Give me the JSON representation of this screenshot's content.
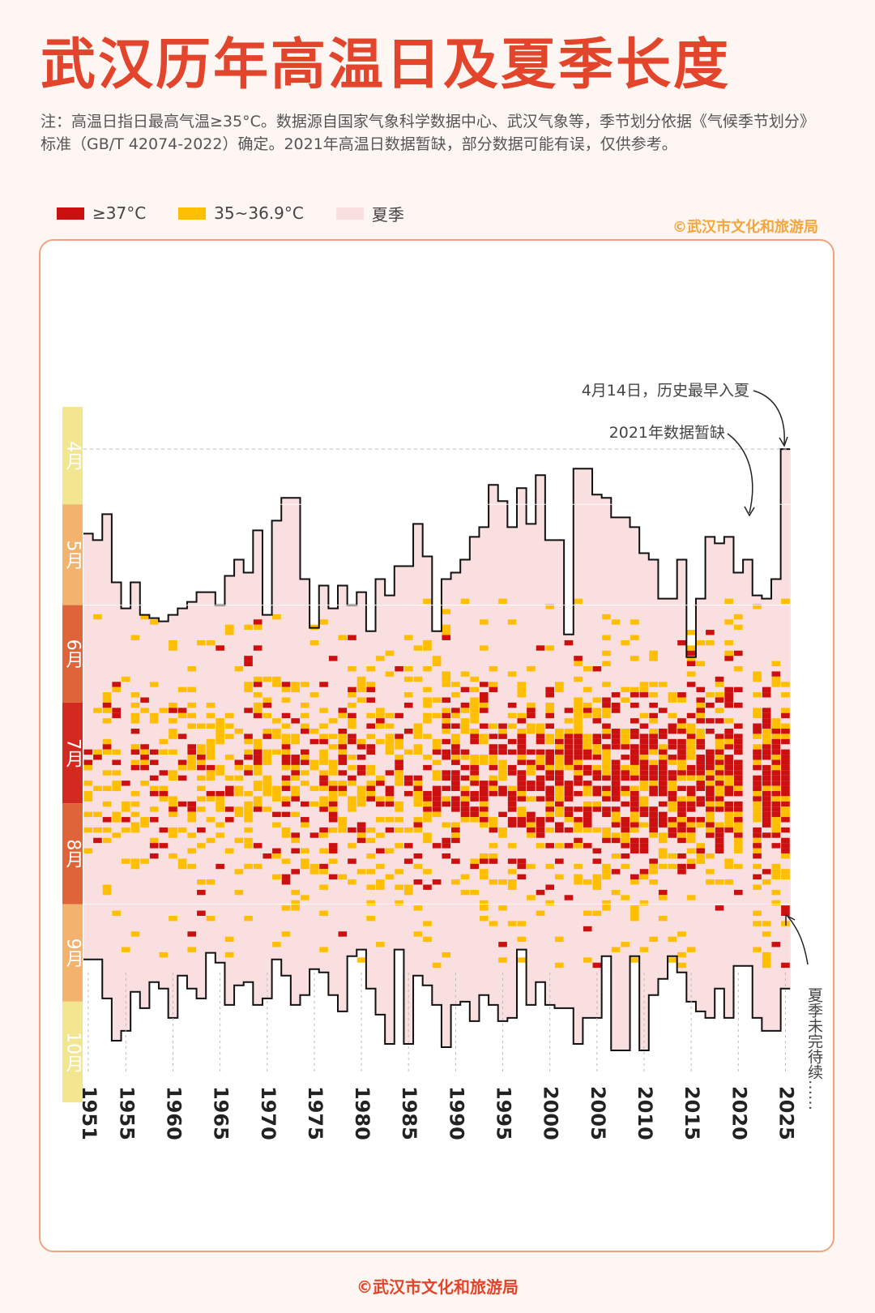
{
  "header": {
    "title": "武汉历年高温日及夏季长度",
    "note": "注：高温日指日最高气温≥35°C。数据源自国家气象科学数据中心、武汉气象等，季节划分依据《气候季节划分》标准（GB/T 42074-2022）确定。2021年高温日数据暂缺，部分数据可能有误，仅供参考。"
  },
  "legend": {
    "items": [
      {
        "label": "≥37°C",
        "color": "#cc1010"
      },
      {
        "label": "35~36.9°C",
        "color": "#ffbf00"
      },
      {
        "label": "夏季",
        "color": "#f9dfe0"
      }
    ]
  },
  "credits": {
    "top": "©武汉市文化和旅游局",
    "bottom": "©武汉市文化和旅游局"
  },
  "chart_data": {
    "type": "heatmap",
    "title": "武汉历年高温日及夏季长度",
    "x_axis": {
      "range": [
        1951,
        2025
      ],
      "tick_labels": [
        "1951",
        "1955",
        "1960",
        "1965",
        "1970",
        "1975",
        "1980",
        "1985",
        "1990",
        "1995",
        "2000",
        "2005",
        "2010",
        "2015",
        "2020",
        "2025"
      ]
    },
    "y_axis": {
      "months": [
        {
          "label": "4月",
          "color": "#f2e690"
        },
        {
          "label": "5月",
          "color": "#f3b36f"
        },
        {
          "label": "6月",
          "color": "#e0643a"
        },
        {
          "label": "7月",
          "color": "#d22a20"
        },
        {
          "label": "8月",
          "color": "#e0643a"
        },
        {
          "label": "9月",
          "color": "#f3b36f"
        },
        {
          "label": "10月",
          "color": "#f2e690"
        }
      ],
      "day_range": [
        91,
        304
      ]
    },
    "summer": {
      "years": [
        1951,
        1952,
        1953,
        1954,
        1955,
        1956,
        1957,
        1958,
        1959,
        1960,
        1961,
        1962,
        1963,
        1964,
        1965,
        1966,
        1967,
        1968,
        1969,
        1970,
        1971,
        1972,
        1973,
        1974,
        1975,
        1976,
        1977,
        1978,
        1979,
        1980,
        1981,
        1982,
        1983,
        1984,
        1985,
        1986,
        1987,
        1988,
        1989,
        1990,
        1991,
        1992,
        1993,
        1994,
        1995,
        1996,
        1997,
        1998,
        1999,
        2000,
        2001,
        2002,
        2003,
        2004,
        2005,
        2006,
        2007,
        2008,
        2009,
        2010,
        2011,
        2012,
        2013,
        2014,
        2015,
        2016,
        2017,
        2018,
        2019,
        2020,
        2021,
        2022,
        2023,
        2024,
        2025
      ],
      "start_day": [
        130,
        132,
        124,
        145,
        153,
        145,
        155,
        156,
        157,
        155,
        153,
        151,
        148,
        148,
        152,
        143,
        138,
        142,
        129,
        155,
        126,
        119,
        119,
        144,
        159,
        146,
        153,
        146,
        152,
        148,
        160,
        144,
        149,
        140,
        140,
        127,
        137,
        160,
        144,
        142,
        138,
        131,
        128,
        115,
        120,
        128,
        116,
        127,
        112,
        132,
        132,
        161,
        110,
        110,
        118,
        119,
        125,
        125,
        128,
        136,
        138,
        150,
        150,
        138,
        168,
        150,
        131,
        133,
        131,
        142,
        138,
        149,
        150,
        144,
        104
      ],
      "end_day": [
        261,
        261,
        273,
        286,
        283,
        271,
        276,
        268,
        270,
        279,
        266,
        270,
        273,
        259,
        262,
        275,
        269,
        268,
        275,
        273,
        261,
        266,
        275,
        272,
        264,
        265,
        272,
        277,
        260,
        258,
        270,
        278,
        287,
        258,
        287,
        266,
        269,
        275,
        288,
        275,
        274,
        280,
        272,
        275,
        280,
        279,
        258,
        275,
        268,
        275,
        276,
        276,
        287,
        279,
        279,
        260,
        289,
        289,
        260,
        289,
        272,
        267,
        260,
        265,
        274,
        277,
        279,
        270,
        279,
        263,
        263,
        279,
        283,
        283,
        270
      ]
    },
    "hot_days": {
      "note": "颜色单元格：≥37°C 与 35~36.9°C 的高温日（按年份与日期）",
      "categories": [
        "≥37°C",
        "35~36.9°C"
      ]
    },
    "annotations": [
      {
        "text": "4月14日，历史最早入夏",
        "year": 2025
      },
      {
        "text": "2021年数据暂缺",
        "year": 2021
      },
      {
        "text": "夏季未完待续……",
        "year": 2025
      }
    ]
  }
}
